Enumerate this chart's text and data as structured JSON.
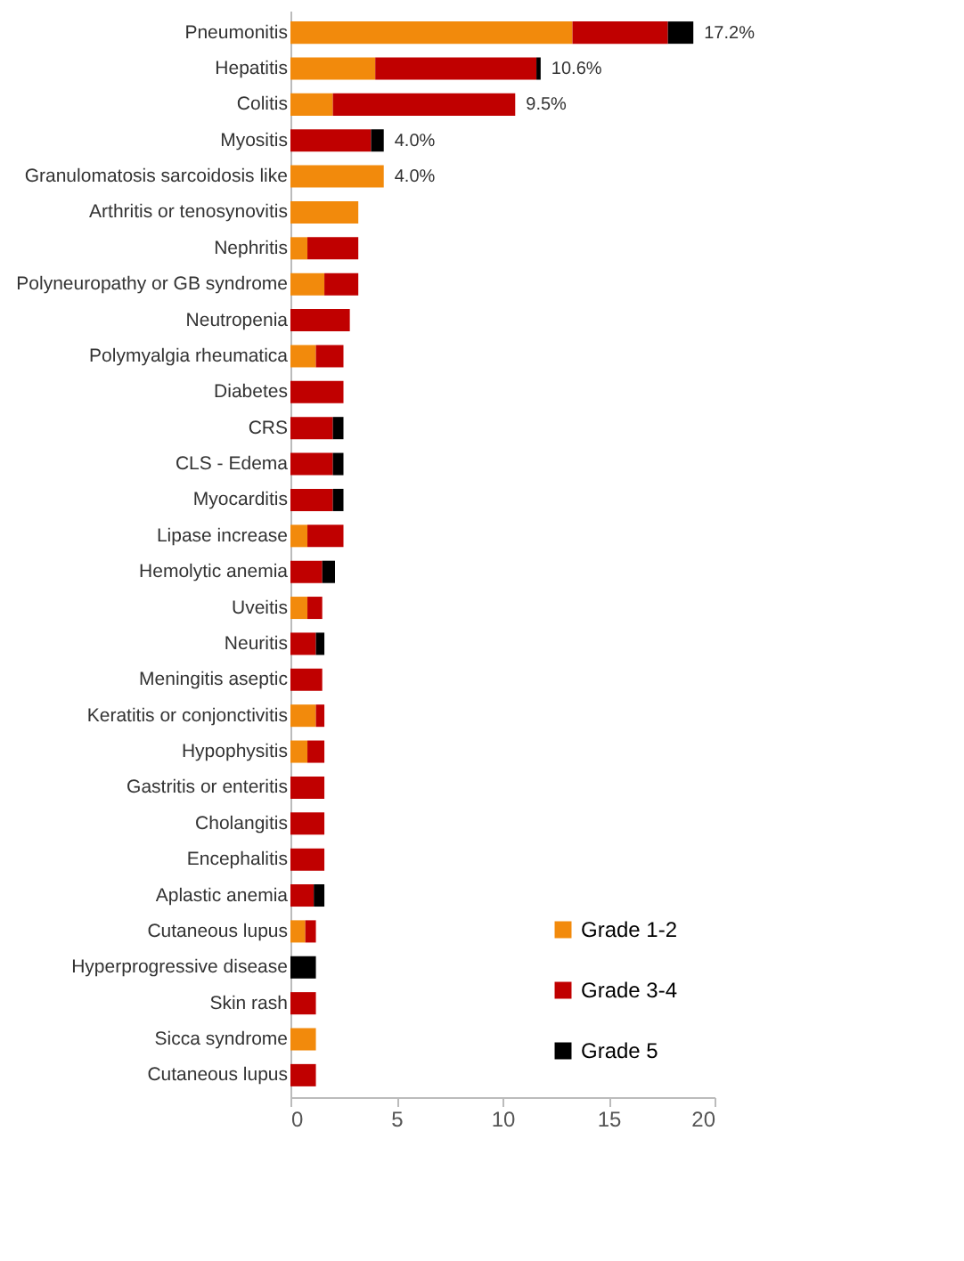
{
  "chart_data": {
    "type": "bar",
    "orientation": "horizontal",
    "stacked": true,
    "categories": [
      "Pneumonitis",
      "Hepatitis",
      "Colitis",
      "Myositis",
      "Granulomatosis sarcoidosis like",
      "Arthritis or tenosynovitis",
      "Nephritis",
      "Polyneuropathy or GB syndrome",
      "Neutropenia",
      "Polymyalgia rheumatica",
      "Diabetes",
      "CRS",
      "CLS - Edema",
      "Myocarditis",
      "Lipase increase",
      "Hemolytic anemia",
      "Uveitis",
      "Neuritis",
      "Meningitis aseptic",
      "Keratitis or conjonctivitis",
      "Hypophysitis",
      "Gastritis or enteritis",
      "Cholangitis",
      "Encephalitis",
      "Aplastic anemia",
      "Cutaneous lupus",
      "Hyperprogressive disease",
      "Skin rash",
      "Sicca syndrome",
      "Cutaneous lupus"
    ],
    "series": [
      {
        "name": "Grade 1-2",
        "color": "#f28a0c",
        "values": [
          13.3,
          4.0,
          2.0,
          null,
          4.4,
          3.2,
          0.8,
          1.6,
          null,
          1.2,
          null,
          null,
          null,
          null,
          0.8,
          null,
          0.8,
          null,
          null,
          1.2,
          0.8,
          null,
          null,
          null,
          null,
          0.7,
          null,
          null,
          1.2,
          null
        ]
      },
      {
        "name": "Grade 3-4",
        "color": "#c00000",
        "values": [
          4.5,
          7.6,
          8.6,
          3.8,
          null,
          null,
          2.4,
          1.6,
          2.8,
          1.3,
          2.5,
          2.0,
          2.0,
          2.0,
          1.7,
          1.5,
          0.7,
          1.2,
          1.5,
          0.4,
          0.8,
          1.6,
          1.6,
          1.6,
          1.1,
          0.5,
          null,
          1.2,
          null,
          1.2
        ]
      },
      {
        "name": "Grade 5",
        "color": "#000000",
        "values": [
          1.2,
          0.2,
          null,
          0.6,
          null,
          null,
          null,
          null,
          null,
          null,
          null,
          0.5,
          0.5,
          0.5,
          null,
          0.6,
          null,
          0.4,
          null,
          null,
          null,
          null,
          null,
          null,
          0.5,
          null,
          1.2,
          null,
          null,
          null
        ]
      }
    ],
    "annotations": [
      {
        "text": "17.2%",
        "x": 19.0,
        "y": "Pneumonitis"
      },
      {
        "text": "10.6%",
        "x": 11.8,
        "y": "Hepatitis"
      },
      {
        "text": "9.5%",
        "x": 10.6,
        "y": "Colitis"
      },
      {
        "text": "4.0%",
        "x": 4.4,
        "y": "Myositis"
      },
      {
        "text": "4.0%",
        "x": 4.4,
        "y": "Granulomatosis sarcoidosis like"
      }
    ],
    "xlim": [
      0,
      20
    ],
    "xticks": [
      0,
      5,
      10,
      15,
      20
    ],
    "legend": "bottom right"
  }
}
